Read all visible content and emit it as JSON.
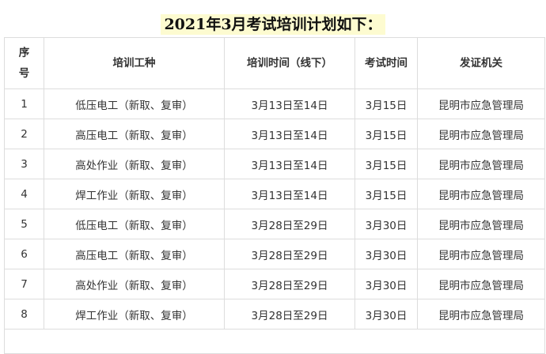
{
  "title": "2021年3月考试培训计划如下：",
  "headers": [
    "序号",
    "培训工种",
    "培训时间（线下）",
    "考试时间",
    "发证机关"
  ],
  "rows": [
    [
      "1",
      "低压电工（新取、复审）",
      "3月13日至14日",
      "3月15日",
      "昆明市应急管理局"
    ],
    [
      "2",
      "高压电工（新取、复审）",
      "3月13日至14日",
      "3月15日",
      "昆明市应急管理局"
    ],
    [
      "3",
      "高处作业（新取、复审）",
      "3月13日至14日",
      "3月15日",
      "昆明市应急管理局"
    ],
    [
      "4",
      "焊工作业（新取、复审）",
      "3月13日至14日",
      "3月15日",
      "昆明市应急管理局"
    ],
    [
      "5",
      "低压电工（新取、复审）",
      "3月28日至29日",
      "3月30日",
      "昆明市应急管理局"
    ],
    [
      "6",
      "高压电工（新取、复审）",
      "3月28日至29日",
      "3月30日",
      "昆明市应急管理局"
    ],
    [
      "7",
      "高处作业（新取、复审）",
      "3月28日至29日",
      "3月30日",
      "昆明市应急管理局"
    ],
    [
      "8",
      "焊工作业（新取、复审）",
      "3月28日至29日",
      "3月30日",
      "昆明市应急管理局"
    ]
  ]
}
